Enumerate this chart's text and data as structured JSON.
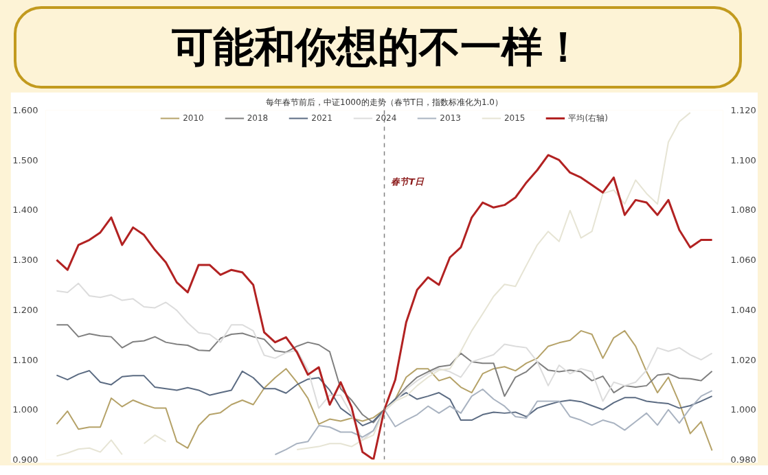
{
  "chart_data": {
    "type": "line",
    "title": "每年春节前后，中证1000的走势（春节T日，指数标准化为1.0）",
    "subtitle": "可能和你想的不一样！",
    "categories": [
      null,
      null,
      null,
      null,
      null,
      null,
      null,
      null,
      null,
      null,
      null,
      null,
      null,
      null,
      null,
      null,
      null,
      null,
      null,
      null,
      null,
      null,
      null,
      null,
      null,
      null,
      null,
      null,
      null,
      null,
      null,
      null,
      null,
      null,
      null,
      null,
      null,
      null,
      null,
      null,
      null,
      null,
      null,
      null,
      null,
      null,
      null,
      null,
      null,
      null,
      null,
      null,
      null,
      null,
      null,
      null,
      null,
      null,
      null,
      null,
      null
    ],
    "series": [
      {
        "name": "2010",
        "color": "#b5a268",
        "values": [
          0.971,
          0.997,
          0.961,
          0.965,
          0.965,
          1.023,
          1.006,
          1.019,
          1.01,
          1.003,
          1.003,
          0.936,
          0.923,
          0.968,
          0.99,
          0.994,
          1.01,
          1.019,
          1.01,
          1.043,
          1.064,
          1.082,
          1.055,
          1.023,
          0.971,
          0.981,
          0.977,
          0.983,
          0.977,
          0.984,
          1.0,
          1.021,
          1.065,
          1.082,
          1.082,
          1.058,
          1.065,
          1.045,
          1.034,
          1.072,
          1.082,
          1.086,
          1.078,
          1.093,
          1.103,
          1.127,
          1.134,
          1.139,
          1.158,
          1.151,
          1.103,
          1.144,
          1.158,
          1.127,
          1.076,
          1.034,
          1.065,
          1.014,
          0.952,
          0.976,
          0.918
        ]
      },
      {
        "name": "2018",
        "color": "#7f7f7f",
        "values": [
          1.17,
          1.17,
          1.146,
          1.152,
          1.148,
          1.146,
          1.124,
          1.136,
          1.138,
          1.146,
          1.135,
          1.131,
          1.129,
          1.119,
          1.118,
          1.143,
          1.151,
          1.153,
          1.146,
          1.141,
          1.118,
          1.115,
          1.127,
          1.135,
          1.13,
          1.116,
          1.042,
          1.019,
          0.99,
          0.974,
          1.0,
          1.021,
          1.045,
          1.065,
          1.076,
          1.086,
          1.089,
          1.113,
          1.096,
          1.093,
          1.093,
          1.027,
          1.065,
          1.076,
          1.096,
          1.079,
          1.076,
          1.079,
          1.076,
          1.058,
          1.067,
          1.034,
          1.048,
          1.045,
          1.048,
          1.069,
          1.072,
          1.063,
          1.062,
          1.058,
          1.077
        ]
      },
      {
        "name": "2021",
        "color": "#5b6b82",
        "values": [
          1.069,
          1.06,
          1.071,
          1.078,
          1.055,
          1.05,
          1.066,
          1.068,
          1.068,
          1.045,
          1.042,
          1.039,
          1.044,
          1.039,
          1.029,
          1.034,
          1.039,
          1.077,
          1.064,
          1.042,
          1.042,
          1.033,
          1.05,
          1.061,
          1.064,
          1.039,
          1.003,
          0.987,
          0.968,
          0.977,
          1.0,
          1.021,
          1.034,
          1.021,
          1.027,
          1.034,
          1.021,
          0.979,
          0.979,
          0.99,
          0.995,
          0.993,
          0.995,
          0.986,
          1.003,
          1.01,
          1.016,
          1.019,
          1.016,
          1.008,
          1.0,
          1.014,
          1.024,
          1.024,
          1.017,
          1.014,
          1.012,
          1.003,
          1.008,
          1.017,
          1.027
        ]
      },
      {
        "name": "2024",
        "color": "#dcdcdc",
        "values": [
          1.238,
          1.235,
          1.253,
          1.228,
          1.225,
          1.23,
          1.219,
          1.222,
          1.206,
          1.204,
          1.215,
          1.199,
          1.174,
          1.154,
          1.151,
          1.135,
          1.17,
          1.17,
          1.158,
          1.109,
          1.103,
          1.114,
          1.119,
          1.08,
          1.003,
          1.029,
          1.029,
          0.99,
          0.939,
          0.958,
          0.997,
          1.017,
          1.041,
          1.058,
          1.072,
          1.082,
          1.076,
          1.065,
          1.096,
          1.103,
          1.11,
          1.131,
          1.127,
          1.124,
          1.096,
          1.048,
          1.089,
          1.072,
          1.082,
          1.076,
          1.017,
          1.055,
          1.048,
          1.055,
          1.079,
          1.124,
          1.117,
          1.124,
          1.11,
          1.1,
          1.113
        ]
      },
      {
        "name": "2013",
        "color": "#a9b3c1",
        "values": [
          null,
          null,
          null,
          null,
          null,
          null,
          null,
          null,
          null,
          null,
          null,
          null,
          null,
          null,
          null,
          null,
          null,
          null,
          null,
          null,
          0.91,
          0.92,
          0.932,
          0.936,
          0.968,
          0.965,
          0.955,
          0.955,
          0.945,
          0.958,
          1.0,
          0.966,
          0.979,
          0.99,
          1.007,
          0.993,
          1.007,
          0.993,
          1.027,
          1.041,
          1.021,
          1.007,
          0.986,
          0.983,
          1.017,
          1.017,
          1.017,
          0.986,
          0.979,
          0.969,
          0.979,
          0.973,
          0.959,
          0.976,
          0.993,
          0.969,
          1.0,
          0.973,
          1.003,
          1.027,
          1.038
        ]
      },
      {
        "name": "2015",
        "color": "#e6e4d4",
        "values": [
          0.907,
          0.913,
          0.921,
          0.923,
          0.915,
          0.939,
          0.91,
          null,
          0.932,
          0.949,
          0.936,
          null,
          null,
          null,
          null,
          null,
          null,
          null,
          null,
          null,
          null,
          null,
          0.92,
          0.923,
          0.926,
          0.932,
          0.932,
          0.926,
          0.939,
          0.949,
          1.0,
          1.017,
          1.027,
          1.048,
          1.065,
          1.079,
          1.082,
          1.117,
          1.158,
          1.192,
          1.227,
          1.251,
          1.247,
          1.289,
          1.33,
          1.357,
          1.337,
          1.399,
          1.344,
          1.357,
          1.433,
          1.44,
          1.412,
          1.46,
          1.433,
          1.412,
          1.536,
          1.577,
          1.595,
          null,
          null
        ]
      },
      {
        "name": "平均(右轴)",
        "color": "#b22222",
        "axis": "y2",
        "values": [
          1.06,
          1.056,
          1.066,
          1.068,
          1.071,
          1.077,
          1.066,
          1.073,
          1.07,
          1.064,
          1.059,
          1.051,
          1.047,
          1.058,
          1.058,
          1.054,
          1.056,
          1.055,
          1.05,
          1.031,
          1.027,
          1.029,
          1.023,
          1.014,
          1.017,
          1.002,
          1.011,
          1.001,
          0.983,
          0.98,
          1.0,
          1.012,
          1.035,
          1.048,
          1.053,
          1.05,
          1.061,
          1.065,
          1.077,
          1.083,
          1.081,
          1.082,
          1.085,
          1.091,
          1.096,
          1.102,
          1.1,
          1.095,
          1.093,
          1.09,
          1.087,
          1.093,
          1.078,
          1.084,
          1.083,
          1.078,
          1.084,
          1.072,
          1.065,
          1.068,
          1.068
        ]
      }
    ],
    "ylim": [
      0.9,
      1.6
    ],
    "yticks": [
      {
        "value": 0.9,
        "label": "0.900"
      },
      {
        "value": 1.0,
        "label": "1.000"
      },
      {
        "value": 1.1,
        "label": "1.100"
      },
      {
        "value": 1.2,
        "label": "1.200"
      },
      {
        "value": 1.3,
        "label": "1.300"
      },
      {
        "value": 1.4,
        "label": "1.400"
      },
      {
        "value": 1.5,
        "label": "1.500"
      },
      {
        "value": 1.6,
        "label": "1.600"
      }
    ],
    "y2lim": [
      0.98,
      1.12
    ],
    "y2ticks": [
      {
        "value": 0.98,
        "label": "0.980"
      },
      {
        "value": 1.0,
        "label": "1.000"
      },
      {
        "value": 1.02,
        "label": "1.020"
      },
      {
        "value": 1.04,
        "label": "1.040"
      },
      {
        "value": 1.06,
        "label": "1.060"
      },
      {
        "value": 1.08,
        "label": "1.080"
      },
      {
        "value": 1.1,
        "label": "1.100"
      },
      {
        "value": 1.12,
        "label": "1.120"
      }
    ],
    "annotations": [
      "春节T日"
    ],
    "tick_labels": "y",
    "grid": false,
    "legend": "top",
    "marker": "none",
    "line_style": "solid"
  }
}
